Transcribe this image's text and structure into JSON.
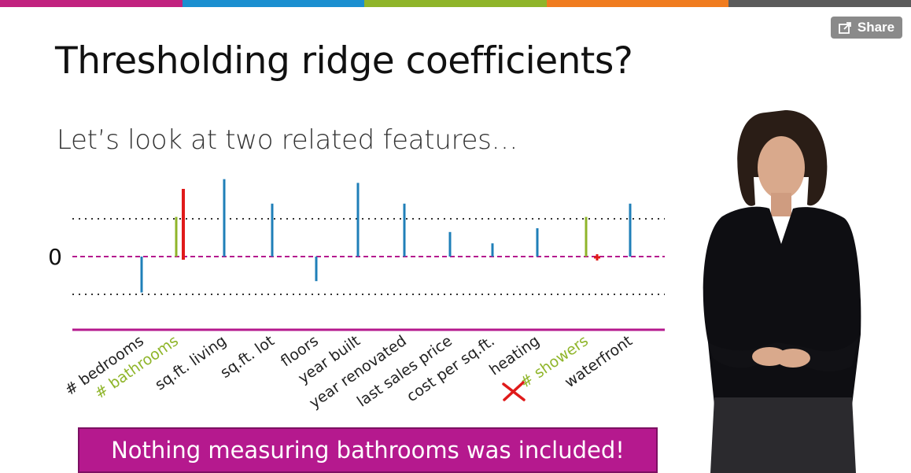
{
  "topbar": {
    "colors": [
      "#c1227f",
      "#1b8fd0",
      "#8fb52a",
      "#f07c1f",
      "#5b5b5b"
    ]
  },
  "share_button": {
    "label": "Share",
    "icon": "share-icon"
  },
  "slide": {
    "title": "Thresholding ridge coefficients?",
    "subtitle": "Let’s look at two related features…",
    "banner": "Nothing measuring bathrooms was included!"
  },
  "chart_data": {
    "type": "bar",
    "zero_label": "0",
    "colors": {
      "default": "#1f7fb8",
      "highlight": "#8fb52a",
      "annotation": "#e01a1a",
      "axis": "#b5198e",
      "threshold": "#333333"
    },
    "threshold": [
      -1,
      1
    ],
    "ylim": [
      -1,
      2
    ],
    "categories": [
      "# bedrooms",
      "# bathrooms",
      "sq.ft. living",
      "sq.ft. lot",
      "floors",
      "year built",
      "year renovated",
      "last sales price",
      "cost per sq.ft.",
      "heating",
      "# showers",
      "waterfront"
    ],
    "highlighted": [
      "# bathrooms",
      "# showers"
    ],
    "values": [
      -0.95,
      1.05,
      2.05,
      1.4,
      -0.65,
      1.95,
      1.4,
      0.65,
      0.35,
      0.75,
      1.05,
      1.4
    ],
    "annotations": {
      "red_bar_on": "# bathrooms",
      "red_bar_value": 1.75,
      "red_dot_on": "# showers",
      "red_x_on": "# showers"
    }
  }
}
